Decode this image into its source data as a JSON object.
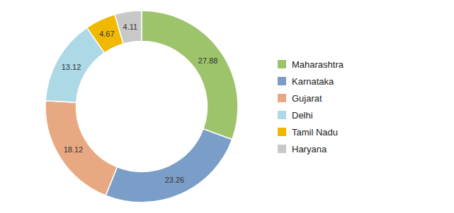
{
  "chart_data": {
    "type": "donut",
    "categories": [
      "Maharashtra",
      "Karnataka",
      "Gujarat",
      "Delhi",
      "Tamil Nadu",
      "Haryana"
    ],
    "values": [
      27.88,
      23.26,
      18.12,
      13.12,
      4.67,
      4.11
    ],
    "colors": [
      "#9dc36b",
      "#7b9ec8",
      "#e8a882",
      "#add8e6",
      "#f0b800",
      "#c8c8c8"
    ],
    "data_labels": true,
    "legend": "right"
  }
}
